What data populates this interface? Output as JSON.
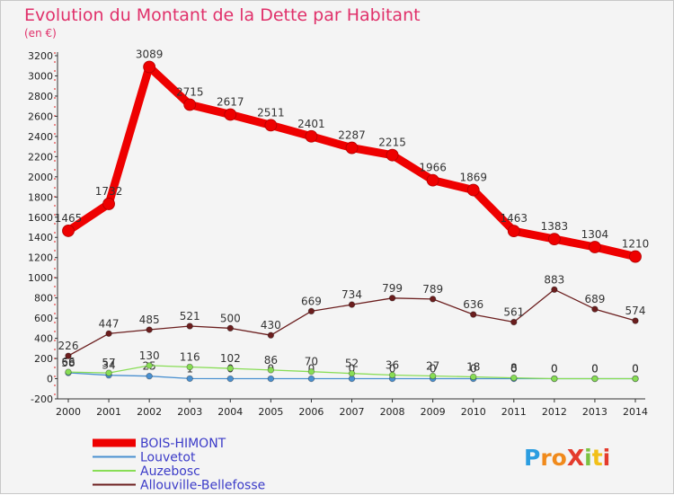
{
  "chart_data": {
    "type": "line",
    "title": "Evolution du Montant de la Dette par Habitant",
    "subtitle": "(en €)",
    "ylim": [
      -200,
      3200
    ],
    "yticks": [
      -200,
      0,
      200,
      400,
      600,
      800,
      1000,
      1200,
      1400,
      1600,
      1800,
      2000,
      2200,
      2400,
      2600,
      2800,
      3000,
      3200
    ],
    "x": [
      "2000",
      "2001",
      "2002",
      "2003",
      "2004",
      "2005",
      "2006",
      "2007",
      "2008",
      "2009",
      "2010",
      "2011",
      "2012",
      "2013",
      "2014"
    ],
    "grid": false,
    "legend_position": "bottom-left",
    "series": [
      {
        "name": "BOIS-HIMONT",
        "color": "#ee0000",
        "emphasis": true,
        "values": [
          1465,
          1732,
          3089,
          2715,
          2617,
          2511,
          2401,
          2287,
          2215,
          1966,
          1869,
          1463,
          1383,
          1304,
          1210
        ],
        "labels": [
          "1465",
          "1732",
          "3089",
          "2715",
          "2617",
          "2511",
          "2401",
          "2287",
          "2215",
          "1966",
          "1869",
          "1463",
          "1383",
          "1304",
          "1210"
        ]
      },
      {
        "name": "Louvetot",
        "color": "#4a90d0",
        "values": [
          58,
          34,
          25,
          1,
          0,
          0,
          0,
          0,
          0,
          0,
          0,
          0,
          0,
          0,
          0
        ],
        "labels": [
          "58",
          "34",
          "25",
          "1",
          "0",
          "0",
          "0",
          "0",
          "0",
          "0",
          "0",
          "0",
          "0",
          "0",
          "0"
        ]
      },
      {
        "name": "Auzebosc",
        "color": "#88dd55",
        "values": [
          66,
          57,
          130,
          116,
          102,
          86,
          70,
          52,
          36,
          27,
          18,
          8,
          0,
          0,
          0
        ],
        "labels": [
          "66",
          "57",
          "130",
          "116",
          "102",
          "86",
          "70",
          "52",
          "36",
          "27",
          "18",
          "8",
          "0",
          "0",
          "0"
        ]
      },
      {
        "name": "Allouville-Bellefosse",
        "color": "#6b1e1e",
        "values": [
          226,
          447,
          485,
          521,
          500,
          430,
          669,
          734,
          799,
          789,
          636,
          561,
          883,
          689,
          574
        ],
        "labels": [
          "226",
          "447",
          "485",
          "521",
          "500",
          "430",
          "669",
          "734",
          "799",
          "789",
          "636",
          "561",
          "883",
          "689",
          "574"
        ]
      }
    ]
  },
  "branding": {
    "logo_text": "ProXiti",
    "logo_letters": [
      "P",
      "r",
      "o",
      "X",
      "i",
      "t",
      "i"
    ],
    "logo_colors": [
      "#2b9de0",
      "#f08a1c",
      "#f08a1c",
      "#e43b2c",
      "#7cc242",
      "#f2c018",
      "#e43b2c"
    ]
  }
}
